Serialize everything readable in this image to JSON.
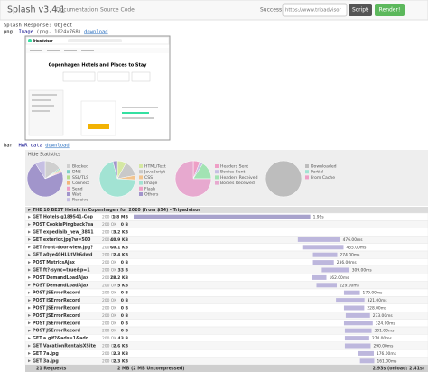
{
  "navbar": {
    "title": "Splash v3.4.1",
    "links": [
      "Documentation",
      "Source Code"
    ],
    "status": "Success",
    "url": "https://www.tripadvisor",
    "script_button": "Script",
    "render_button": "Render!"
  },
  "response": {
    "heading": "Splash Response: Object",
    "png": {
      "key": "png:",
      "type": "Image",
      "info": "(png, 1024x768)",
      "link": "download"
    },
    "screenshot": {
      "logo": "Tripadvisor",
      "title": "Copenhagen Hotels and Places to Stay"
    },
    "har": {
      "key": "har:",
      "type": "HAR data",
      "link": "download"
    }
  },
  "statistics": {
    "toggle": "Hide Statistics",
    "pies": [
      {
        "items": [
          {
            "label": "Blocked",
            "value": 15,
            "color": "#cfcfcf"
          },
          {
            "label": "DNS",
            "value": 1,
            "color": "#7fcfc6"
          },
          {
            "label": "SSL/TLS",
            "value": 1,
            "color": "#b7dd8e"
          },
          {
            "label": "Connect",
            "value": 1,
            "color": "#f2b57a"
          },
          {
            "label": "Send",
            "value": 1,
            "color": "#ee9fc6"
          },
          {
            "label": "Wait",
            "value": 72,
            "color": "#a195cb"
          },
          {
            "label": "Receive",
            "value": 9,
            "color": "#c6bfe3"
          }
        ]
      },
      {
        "items": [
          {
            "label": "HTML/Text",
            "value": 8,
            "color": "#d5e8a3"
          },
          {
            "label": "JavaScript",
            "value": 14,
            "color": "#c9c9c9"
          },
          {
            "label": "CSS",
            "value": 4,
            "color": "#f2c48e"
          },
          {
            "label": "Image",
            "value": 70,
            "color": "#a2e3d3"
          },
          {
            "label": "Flash",
            "value": 0,
            "color": "#ee9fc6"
          },
          {
            "label": "Others",
            "value": 4,
            "color": "#a195cb"
          }
        ]
      },
      {
        "items": [
          {
            "label": "Headers Sent",
            "value": 6,
            "color": "#ee9fc6"
          },
          {
            "label": "Bodies Sent",
            "value": 3,
            "color": "#c6bfe3"
          },
          {
            "label": "Headers Received",
            "value": 16,
            "color": "#a2e3b3"
          },
          {
            "label": "Bodies Received",
            "value": 75,
            "color": "#e7a9cf"
          }
        ]
      },
      {
        "items": [
          {
            "label": "Downloaded",
            "value": 100,
            "color": "#bdbdbd"
          },
          {
            "label": "Partial",
            "value": 0,
            "color": "#a2e3d3"
          },
          {
            "label": "From Cache",
            "value": 0,
            "color": "#ee9fc6"
          }
        ]
      }
    ]
  },
  "network": {
    "page_title": "THE 10 BEST Hotels in Copenhagen for 2020 (from $54) - Tripadvisor",
    "rows": [
      {
        "method": "GET",
        "url": "Hotels-g189541-Cop",
        "status": "200 OK",
        "size": "1.8 MB",
        "start": 0,
        "duration": 1990,
        "duration_label": "1.99s"
      },
      {
        "method": "POST",
        "url": "CookiePingback?ea",
        "status": "200 OK",
        "size": "0 B",
        "start": 1500,
        "duration": null,
        "duration_label": null
      },
      {
        "method": "GET",
        "url": "expediaib_new_3841",
        "status": "200 OK",
        "size": "3.2 KB",
        "start": 1700,
        "duration": null,
        "duration_label": null
      },
      {
        "method": "GET",
        "url": "exterior.jpg?w=500",
        "status": "200 OK",
        "size": "40.9 KB",
        "start": 1850,
        "duration": 476,
        "duration_label": "476.00ms"
      },
      {
        "method": "GET",
        "url": "front-door-view.jpg?",
        "status": "200 OK",
        "size": "60.1 KB",
        "start": 1910,
        "duration": 455,
        "duration_label": "455.00ms"
      },
      {
        "method": "GET",
        "url": "a0ye40HLUtVh6dwd",
        "status": "200 OK",
        "size": "2.4 KB",
        "start": 2020,
        "duration": 274,
        "duration_label": "274.00ms"
      },
      {
        "method": "POST",
        "url": "MetricsAjax",
        "status": "200 OK",
        "size": "0 B",
        "start": 2020,
        "duration": 236,
        "duration_label": "236.00ms"
      },
      {
        "method": "GET",
        "url": "ft?-sync=true&p=1",
        "status": "200 OK",
        "size": "33 B",
        "start": 2120,
        "duration": 309,
        "duration_label": "309.00ms"
      },
      {
        "method": "POST",
        "url": "DemandLoadAjax",
        "status": "200 OK",
        "size": "28.2 KB",
        "start": 2010,
        "duration": 162,
        "duration_label": "162.00ms"
      },
      {
        "method": "POST",
        "url": "DemandLoadAjax",
        "status": "200 OK",
        "size": "5 KB",
        "start": 2060,
        "duration": 229,
        "duration_label": "229.00ms"
      },
      {
        "method": "POST",
        "url": "JSErrorRecord",
        "status": "200 OK",
        "size": "0 B",
        "start": 2370,
        "duration": 179,
        "duration_label": "179.00ms"
      },
      {
        "method": "POST",
        "url": "JSErrorRecord",
        "status": "200 OK",
        "size": "0 B",
        "start": 2280,
        "duration": 321,
        "duration_label": "321.00ms"
      },
      {
        "method": "POST",
        "url": "JSErrorRecord",
        "status": "200 OK",
        "size": "0 B",
        "start": 2370,
        "duration": 228,
        "duration_label": "228.00ms"
      },
      {
        "method": "POST",
        "url": "JSErrorRecord",
        "status": "200 OK",
        "size": "0 B",
        "start": 2390,
        "duration": 273,
        "duration_label": "273.00ms"
      },
      {
        "method": "POST",
        "url": "JSErrorRecord",
        "status": "200 OK",
        "size": "0 B",
        "start": 2370,
        "duration": 324,
        "duration_label": "324.00ms"
      },
      {
        "method": "POST",
        "url": "JSErrorRecord",
        "status": "200 OK",
        "size": "0 B",
        "start": 2380,
        "duration": 301,
        "duration_label": "301.00ms"
      },
      {
        "method": "GET",
        "url": "a.gif?&ads=1&adn",
        "status": "200 OK",
        "size": "43 B",
        "start": 2380,
        "duration": 274,
        "duration_label": "274.00ms"
      },
      {
        "method": "GET",
        "url": "VacationRentalsXSite",
        "status": "200 OK",
        "size": "2.6 KB",
        "start": 2380,
        "duration": 290,
        "duration_label": "290.00ms"
      },
      {
        "method": "GET",
        "url": "7a.jpg",
        "status": "200 OK",
        "size": "2.3 KB",
        "start": 2530,
        "duration": 176,
        "duration_label": "176.00ms"
      },
      {
        "method": "GET",
        "url": "3a.jpg",
        "status": "200 OK",
        "size": "2.3 KB",
        "start": 2550,
        "duration": 161,
        "duration_label": "161.00ms"
      }
    ],
    "footer": {
      "requests": "21 Requests",
      "size": "2 MB (2 MB Uncompressed)",
      "time": "2.93s (onload: 2.41s)",
      "total_ms": 2930
    }
  }
}
